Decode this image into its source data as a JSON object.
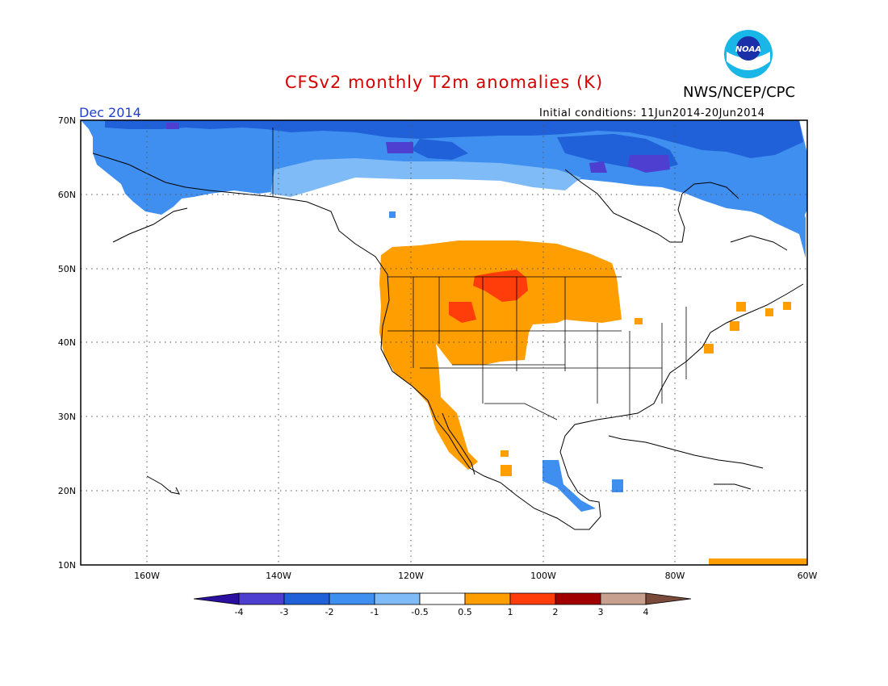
{
  "header": {
    "title": "CFSv2 monthly T2m anomalies (K)",
    "org": "NWS/NCEP/CPC",
    "month": "Dec 2014",
    "initial_conditions": "Initial conditions: 11Jun2014-20Jun2014",
    "logo_text": "NOAA"
  },
  "map": {
    "lon_range": [
      -170,
      -60
    ],
    "lat_range": [
      10,
      70
    ],
    "lon_ticks": [
      "160W",
      "140W",
      "120W",
      "100W",
      "80W",
      "60W"
    ],
    "lat_ticks": [
      "10N",
      "20N",
      "30N",
      "40N",
      "50N",
      "60N",
      "70N"
    ],
    "grid": true
  },
  "legend": {
    "labels": [
      "-4",
      "-3",
      "-2",
      "-1",
      "-0.5",
      "0.5",
      "1",
      "2",
      "3",
      "4"
    ],
    "colors": [
      "#2a0fa0",
      "#4f3fd0",
      "#2060d8",
      "#3f8ff0",
      "#7fbbf6",
      "#ffffff",
      "#ff9e00",
      "#ff3d0a",
      "#a00000",
      "#c8a090",
      "#7a4a3a"
    ]
  }
}
